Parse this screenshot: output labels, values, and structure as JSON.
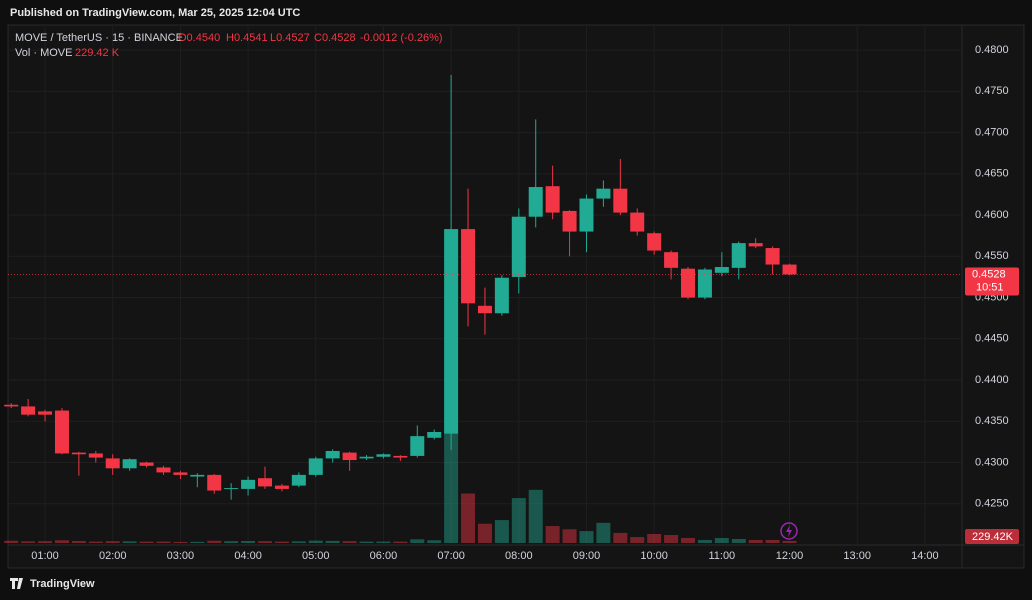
{
  "header": {
    "published": "Published on TradingView.com, Mar 25, 2025 12:04 UTC"
  },
  "chart_data": {
    "type": "candlestick",
    "legend": {
      "symbol": "MOVE / TetherUS · 15 · BINANCE",
      "open": "O0.4540",
      "high": "H0.4541",
      "low": "L0.4527",
      "close": "C0.4528",
      "change": "-0.0012 (-0.26%)",
      "volume_name": "Vol · MOVE",
      "volume": "229.42 K"
    },
    "x": [
      "00:30",
      "00:45",
      "01:00",
      "01:15",
      "01:30",
      "01:45",
      "02:00",
      "02:15",
      "02:30",
      "02:45",
      "03:00",
      "03:15",
      "03:30",
      "03:45",
      "04:00",
      "04:15",
      "04:30",
      "04:45",
      "05:00",
      "05:15",
      "05:30",
      "05:45",
      "06:00",
      "06:15",
      "06:30",
      "06:45",
      "07:00",
      "07:15",
      "07:30",
      "07:45",
      "08:00",
      "08:15",
      "08:30",
      "08:45",
      "09:00",
      "09:15",
      "09:30",
      "09:45",
      "10:00",
      "10:15",
      "10:30",
      "10:45",
      "11:00",
      "11:15",
      "11:30",
      "11:45",
      "12:00"
    ],
    "open": [
      0.437,
      0.4368,
      0.4362,
      0.4363,
      0.4312,
      0.4311,
      0.4305,
      0.4293,
      0.43,
      0.4294,
      0.4288,
      0.4283,
      0.4285,
      0.4268,
      0.4268,
      0.4281,
      0.4272,
      0.4272,
      0.4285,
      0.4305,
      0.4312,
      0.4305,
      0.4307,
      0.4308,
      0.4308,
      0.433,
      0.4335,
      0.4583,
      0.449,
      0.4481,
      0.4525,
      0.4598,
      0.4635,
      0.4605,
      0.458,
      0.462,
      0.4632,
      0.4603,
      0.4578,
      0.4555,
      0.4535,
      0.45,
      0.453,
      0.4536,
      0.4566,
      0.456,
      0.454
    ],
    "high": [
      0.4372,
      0.4377,
      0.4364,
      0.4366,
      0.4313,
      0.4314,
      0.431,
      0.4305,
      0.4301,
      0.4296,
      0.429,
      0.4287,
      0.4286,
      0.4275,
      0.4283,
      0.4295,
      0.4274,
      0.4288,
      0.4307,
      0.4316,
      0.4313,
      0.4309,
      0.4311,
      0.4309,
      0.4345,
      0.434,
      0.477,
      0.4632,
      0.4512,
      0.4527,
      0.4608,
      0.4716,
      0.466,
      0.4606,
      0.4625,
      0.4642,
      0.4668,
      0.4608,
      0.458,
      0.4557,
      0.4537,
      0.4536,
      0.4555,
      0.4568,
      0.4572,
      0.4562,
      0.4541
    ],
    "low": [
      0.4366,
      0.4356,
      0.435,
      0.431,
      0.4284,
      0.43,
      0.4285,
      0.429,
      0.4294,
      0.4285,
      0.428,
      0.427,
      0.4262,
      0.4255,
      0.426,
      0.4268,
      0.4265,
      0.427,
      0.4283,
      0.43,
      0.429,
      0.4303,
      0.4305,
      0.4302,
      0.4306,
      0.4328,
      0.4315,
      0.4465,
      0.4455,
      0.4478,
      0.4505,
      0.4585,
      0.4595,
      0.455,
      0.4555,
      0.461,
      0.46,
      0.4575,
      0.4552,
      0.4522,
      0.4498,
      0.4498,
      0.4526,
      0.4522,
      0.456,
      0.4528,
      0.4527
    ],
    "close": [
      0.4368,
      0.4358,
      0.4358,
      0.4311,
      0.431,
      0.4306,
      0.4293,
      0.4304,
      0.4296,
      0.4288,
      0.4285,
      0.4285,
      0.4266,
      0.4269,
      0.4279,
      0.4271,
      0.4268,
      0.4285,
      0.4305,
      0.4314,
      0.4303,
      0.4307,
      0.431,
      0.4306,
      0.4332,
      0.4337,
      0.4583,
      0.4493,
      0.4481,
      0.4524,
      0.4598,
      0.4634,
      0.4603,
      0.458,
      0.462,
      0.4632,
      0.4603,
      0.458,
      0.4557,
      0.4536,
      0.45,
      0.4534,
      0.4537,
      0.4566,
      0.4562,
      0.454,
      0.4528
    ],
    "volume": [
      250,
      180,
      200,
      300,
      220,
      150,
      200,
      180,
      150,
      160,
      120,
      130,
      250,
      200,
      220,
      200,
      150,
      180,
      260,
      230,
      200,
      150,
      160,
      150,
      400,
      300,
      12000,
      5400,
      2100,
      2500,
      4900,
      5800,
      1850,
      1500,
      1300,
      2200,
      1100,
      650,
      980,
      870,
      550,
      330,
      550,
      440,
      330,
      330,
      229.42
    ],
    "volume_lim": [
      0,
      12000
    ],
    "ylim": [
      0.42,
      0.4828
    ],
    "yticks": [
      {
        "value": 0.425,
        "label": "0.4250"
      },
      {
        "value": 0.43,
        "label": "0.4300"
      },
      {
        "value": 0.435,
        "label": "0.4350"
      },
      {
        "value": 0.44,
        "label": "0.4400"
      },
      {
        "value": 0.445,
        "label": "0.4450"
      },
      {
        "value": 0.45,
        "label": "0.4500"
      },
      {
        "value": 0.455,
        "label": "0.4550"
      },
      {
        "value": 0.46,
        "label": "0.4600"
      },
      {
        "value": 0.465,
        "label": "0.4650"
      },
      {
        "value": 0.47,
        "label": "0.4700"
      },
      {
        "value": 0.475,
        "label": "0.4750"
      },
      {
        "value": 0.48,
        "label": "0.4800"
      }
    ],
    "xticks": [
      "01:00",
      "02:00",
      "03:00",
      "04:00",
      "05:00",
      "06:00",
      "07:00",
      "08:00",
      "09:00",
      "10:00",
      "11:00",
      "12:00",
      "13:00",
      "14:00"
    ],
    "last_price_label": "0.4528",
    "countdown": "10:51",
    "volume_label": "229.42K",
    "up_color": "#22ab94",
    "down_color": "#f23645",
    "grid": true
  },
  "footer": {
    "brand": "TradingView"
  }
}
